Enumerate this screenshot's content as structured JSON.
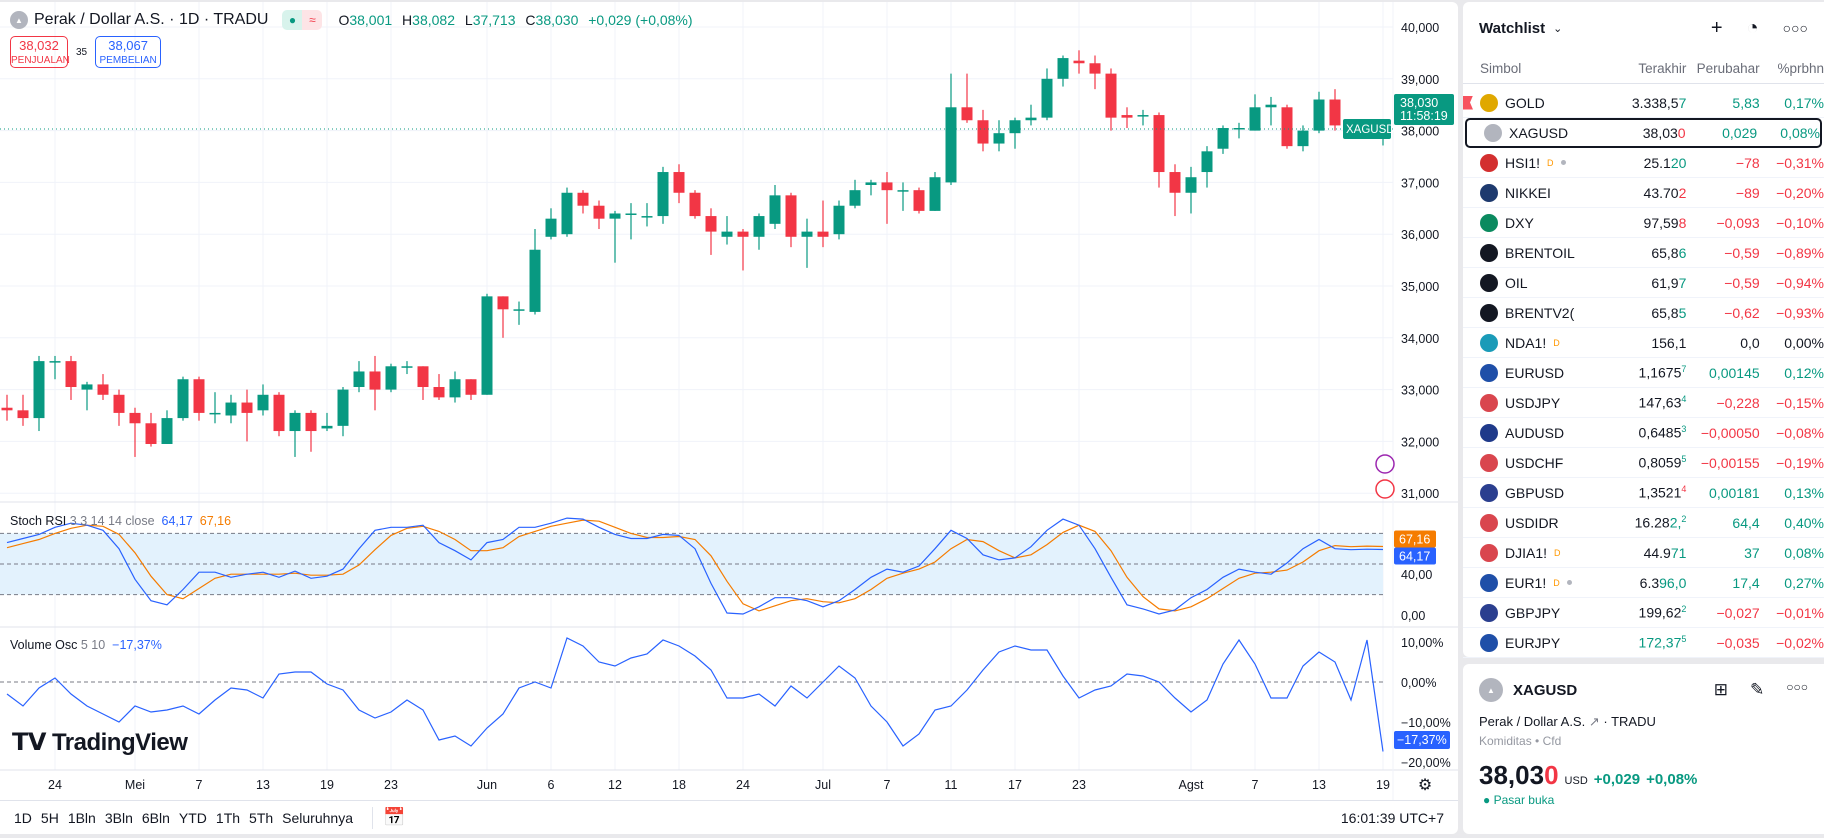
{
  "header": {
    "symbol_title": "Perak / Dollar A.S. · 1D · TRADU",
    "ohlc": {
      "o_label": "O",
      "o": "38,001",
      "h_label": "H",
      "h": "38,082",
      "l_label": "L",
      "l": "37,713",
      "c_label": "C",
      "c": "38,030",
      "change": "+0,029 (+0,08%)"
    },
    "sell_price": "38,032",
    "sell_label": "PENJUALAN",
    "spread": "35",
    "buy_price": "38,067",
    "buy_label": "PEMBELIAN"
  },
  "colors": {
    "up": "#089981",
    "down": "#f23645",
    "k_line": "#2962ff",
    "d_line": "#f57c00",
    "band": "#e3f2fd"
  },
  "price_axis": {
    "ticks": [
      "40,000",
      "39,000",
      "38,000",
      "37,000",
      "36,000",
      "35,000",
      "34,000",
      "33,000",
      "32,000",
      "31,000"
    ],
    "current_symbol": "XAGUSD",
    "current_price": "38,030",
    "countdown": "11:58:19"
  },
  "time_axis": {
    "ticks": [
      "24",
      "Mei",
      "7",
      "13",
      "19",
      "23",
      "Jun",
      "6",
      "12",
      "18",
      "24",
      "Jul",
      "7",
      "11",
      "17",
      "23",
      "Agst",
      "7",
      "13",
      "19"
    ]
  },
  "chart_data": {
    "type": "candlestick",
    "unit": "thousands",
    "ylim": [
      31,
      40
    ],
    "open": [
      32.65,
      32.6,
      32.45,
      33.55,
      33.55,
      33.0,
      33.1,
      32.9,
      32.55,
      32.35,
      31.95,
      32.45,
      33.2,
      32.55,
      32.5,
      32.75,
      32.6,
      32.9,
      32.2,
      32.55,
      32.25,
      32.3,
      33.05,
      33.35,
      33.0,
      33.45,
      33.45,
      33.05,
      32.85,
      33.2,
      32.9,
      34.8,
      34.55,
      34.5,
      35.95,
      36.0,
      36.8,
      36.55,
      36.3,
      36.4,
      36.35,
      36.35,
      37.2,
      36.8,
      36.35,
      35.95,
      36.05,
      35.95,
      36.2,
      36.75,
      35.95,
      36.05,
      36.0,
      36.55,
      36.95,
      37.0,
      36.85,
      36.85,
      36.45,
      37.0,
      38.45,
      38.2,
      37.75,
      37.95,
      38.2,
      38.25,
      39.0,
      39.35,
      39.3,
      39.1,
      38.3,
      38.3,
      38.3,
      37.2,
      36.8,
      37.2,
      37.65,
      38.05,
      38.0,
      38.45,
      38.45,
      37.7,
      38.0,
      38.6,
      38.1,
      38.0,
      38.001
    ],
    "high": [
      32.9,
      32.9,
      33.65,
      33.65,
      33.65,
      33.15,
      33.3,
      33.0,
      32.65,
      32.55,
      32.6,
      33.25,
      33.25,
      32.95,
      32.9,
      33.0,
      33.1,
      32.95,
      32.6,
      32.6,
      32.55,
      33.05,
      33.55,
      33.65,
      33.5,
      33.55,
      33.45,
      33.3,
      33.35,
      33.2,
      34.85,
      34.8,
      34.7,
      36.1,
      36.5,
      36.9,
      36.85,
      36.65,
      36.45,
      36.6,
      36.6,
      37.3,
      37.35,
      36.85,
      36.5,
      36.35,
      36.1,
      36.4,
      36.95,
      36.8,
      36.3,
      36.65,
      36.65,
      37.05,
      37.05,
      37.2,
      37.0,
      36.9,
      37.2,
      39.1,
      39.1,
      38.4,
      38.2,
      38.25,
      38.5,
      39.2,
      39.45,
      39.55,
      39.45,
      39.2,
      38.45,
      38.4,
      38.35,
      37.35,
      37.3,
      37.7,
      38.1,
      38.15,
      38.7,
      38.65,
      38.5,
      38.1,
      38.75,
      38.8,
      38.2,
      38.2,
      38.082
    ],
    "low": [
      32.4,
      32.3,
      32.2,
      33.2,
      32.8,
      32.6,
      32.8,
      32.3,
      31.7,
      31.9,
      31.95,
      32.4,
      32.4,
      32.35,
      32.35,
      32.0,
      32.5,
      32.1,
      31.7,
      31.8,
      32.2,
      32.1,
      32.95,
      32.6,
      32.95,
      33.3,
      32.8,
      32.8,
      32.75,
      32.8,
      32.9,
      34.0,
      34.25,
      34.45,
      35.9,
      35.95,
      36.4,
      36.1,
      35.45,
      35.9,
      36.15,
      36.2,
      36.6,
      36.3,
      35.6,
      35.8,
      35.3,
      35.7,
      36.1,
      35.75,
      35.35,
      35.75,
      35.9,
      36.5,
      36.75,
      36.2,
      36.45,
      36.4,
      36.45,
      36.95,
      38.15,
      37.6,
      37.6,
      37.65,
      38.1,
      38.2,
      38.85,
      39.1,
      38.8,
      38.0,
      38.05,
      38.1,
      36.9,
      36.35,
      36.4,
      36.9,
      37.55,
      37.85,
      38.0,
      38.1,
      37.65,
      37.6,
      37.95,
      38.0,
      37.85,
      37.9,
      37.713
    ],
    "close": [
      32.6,
      32.45,
      33.55,
      33.55,
      33.05,
      33.1,
      32.9,
      32.55,
      32.35,
      31.95,
      32.45,
      33.2,
      32.55,
      32.55,
      32.75,
      32.55,
      32.9,
      32.2,
      32.55,
      32.2,
      32.3,
      33.0,
      33.35,
      33.0,
      33.45,
      33.45,
      33.05,
      32.85,
      33.2,
      32.9,
      34.8,
      34.55,
      34.55,
      35.7,
      36.3,
      36.8,
      36.55,
      36.3,
      36.4,
      36.4,
      36.35,
      37.2,
      36.8,
      36.35,
      36.05,
      36.05,
      35.95,
      36.35,
      36.75,
      35.95,
      36.05,
      35.95,
      36.55,
      36.85,
      37.0,
      36.85,
      36.85,
      36.45,
      37.1,
      38.45,
      38.2,
      37.75,
      37.95,
      38.2,
      38.25,
      39.0,
      39.4,
      39.3,
      39.1,
      38.25,
      38.25,
      38.3,
      37.2,
      36.8,
      37.1,
      37.6,
      38.05,
      38.05,
      38.45,
      38.5,
      37.7,
      38.0,
      38.6,
      38.1,
      38.05,
      38.08,
      38.03
    ]
  },
  "stoch_rsi": {
    "label": "Stoch RSI",
    "params": "3 3 14 14 close",
    "k_value": "64,17",
    "d_value": "67,16",
    "ticks": [
      "40,00",
      "0,00"
    ],
    "levels": [
      80,
      50,
      20
    ],
    "k": [
      71,
      75,
      79,
      86,
      90,
      88,
      83,
      65,
      35,
      14,
      10,
      25,
      42,
      42,
      37,
      40,
      42,
      37,
      43,
      36,
      38,
      45,
      65,
      83,
      86,
      86,
      88,
      71,
      63,
      54,
      71,
      74,
      86,
      86,
      90,
      95,
      94,
      86,
      79,
      75,
      75,
      79,
      78,
      65,
      31,
      2,
      1,
      8,
      17,
      17,
      14,
      8,
      14,
      25,
      37,
      45,
      42,
      48,
      65,
      83,
      75,
      59,
      54,
      56,
      67,
      83,
      94,
      88,
      65,
      37,
      10,
      6,
      1,
      5,
      17,
      25,
      37,
      45,
      42,
      40,
      51,
      65,
      74,
      65,
      64,
      64.5,
      64.17
    ],
    "d": [
      66,
      70,
      74,
      80,
      85,
      88,
      87,
      79,
      61,
      38,
      20,
      16,
      26,
      36,
      40,
      40,
      40,
      40,
      41,
      39,
      39,
      40,
      49,
      64,
      78,
      85,
      87,
      82,
      74,
      63,
      63,
      66,
      77,
      82,
      87,
      90,
      93,
      92,
      86,
      80,
      76,
      76,
      77,
      74,
      58,
      33,
      11,
      4,
      9,
      14,
      16,
      13,
      12,
      16,
      25,
      36,
      41,
      45,
      52,
      65,
      74,
      72,
      63,
      56,
      59,
      69,
      81,
      88,
      82,
      63,
      37,
      18,
      6,
      4,
      8,
      16,
      26,
      36,
      41,
      42,
      44,
      52,
      63,
      68,
      67,
      67.5,
      67.16
    ]
  },
  "volume_osc": {
    "label": "Volume Osc",
    "params": "5 10",
    "value": "−17,37%",
    "ticks": [
      "10,00%",
      "0,00%",
      "−10,00%",
      "−20,00%"
    ],
    "values": [
      -3,
      -6,
      -1.5,
      1,
      -3,
      -6,
      -8,
      -10,
      -6,
      -7.5,
      -7,
      -6,
      -8,
      -4.5,
      -1.5,
      -2,
      -4,
      2,
      2.5,
      2.5,
      -0.5,
      -2,
      -7,
      -9,
      -7.5,
      -4.5,
      -7,
      -14.5,
      -13.5,
      -16,
      -11.5,
      -8,
      -1.5,
      0,
      -1.5,
      11,
      9,
      5,
      4,
      6,
      7,
      10.5,
      9,
      6.5,
      3,
      -4,
      -4,
      -3,
      -6,
      -1,
      -4,
      0,
      4,
      1,
      -6,
      -10,
      -16,
      -13,
      -7,
      -6,
      -2,
      3,
      7.5,
      9,
      8,
      8,
      1.5,
      -4,
      -2,
      -1,
      2,
      1.5,
      0,
      -4,
      -7.5,
      -4.5,
      4.5,
      10.5,
      4.5,
      -4,
      -4,
      4,
      7.5,
      5,
      -4.5,
      10.5,
      -17.37
    ]
  },
  "branding": {
    "logo": "TradingView"
  },
  "bottom_bar": {
    "ranges": [
      "1D",
      "5H",
      "1Bln",
      "3Bln",
      "6Bln",
      "YTD",
      "1Th",
      "5Th",
      "Seluruhnya"
    ],
    "clock": "16:01:39 UTC+7"
  },
  "watchlist": {
    "title": "Watchlist",
    "columns": [
      "Simbol",
      "Terakhir",
      "Perubahar",
      "%prbhn"
    ],
    "rows": [
      {
        "symbol": "GOLD",
        "icon": "gold-bar",
        "icon_color": "#e0a800",
        "main": "3.338,5",
        "tail": "7",
        "sup": "",
        "tail_dir": "up",
        "change": "5,83",
        "pct": "0,17%",
        "dir": "up",
        "flag": true
      },
      {
        "symbol": "XAGUSD",
        "icon": "silver-bar",
        "icon_color": "#b2b5be",
        "main": "38,03",
        "tail": "0",
        "sup": "",
        "tail_dir": "dn",
        "change": "0,029",
        "pct": "0,08%",
        "dir": "up",
        "selected": true
      },
      {
        "symbol": "HSI1!",
        "icon": "hsi",
        "icon_color": "#d32f2f",
        "main": "25.1",
        "tail": "20",
        "sup": "",
        "tail_dir": "up",
        "change": "−78",
        "pct": "−0,31%",
        "dir": "dn",
        "badge": "D",
        "dot": true
      },
      {
        "symbol": "NIKKEI",
        "icon": "nikkei-225",
        "icon_color": "#1e3a6e",
        "main": "43.70",
        "tail": "2",
        "sup": "",
        "tail_dir": "dn",
        "change": "−89",
        "pct": "−0,20%",
        "dir": "dn"
      },
      {
        "symbol": "DXY",
        "icon": "dollar",
        "icon_color": "#0b8a5f",
        "main": "97,59",
        "tail": "8",
        "sup": "",
        "tail_dir": "dn",
        "change": "−0,093",
        "pct": "−0,10%",
        "dir": "dn"
      },
      {
        "symbol": "BRENTOIL",
        "icon": "oil-drop",
        "icon_color": "#131722",
        "main": "65,8",
        "tail": "6",
        "sup": "",
        "tail_dir": "up",
        "change": "−0,59",
        "pct": "−0,89%",
        "dir": "dn"
      },
      {
        "symbol": "OIL",
        "icon": "oil-drop",
        "icon_color": "#131722",
        "main": "61,9",
        "tail": "7",
        "sup": "",
        "tail_dir": "up",
        "change": "−0,59",
        "pct": "−0,94%",
        "dir": "dn"
      },
      {
        "symbol": "BRENTV2(",
        "icon": "oil-drop",
        "icon_color": "#131722",
        "main": "65,8",
        "tail": "5",
        "sup": "",
        "tail_dir": "up",
        "change": "−0,62",
        "pct": "−0,93%",
        "dir": "dn"
      },
      {
        "symbol": "NDA1!",
        "icon": "index-100",
        "icon_color": "#1a9bb8",
        "main": "156,1",
        "tail": "",
        "sup": "",
        "tail_dir": "",
        "change": "0,0",
        "pct": "0,00%",
        "dir": "",
        "badge": "D"
      },
      {
        "symbol": "EURUSD",
        "icon": "flag-eu-us",
        "icon_color": "#1f4fa8",
        "main": "1,1675",
        "tail": "",
        "sup": "7",
        "tail_dir": "up",
        "change": "0,00145",
        "pct": "0,12%",
        "dir": "up"
      },
      {
        "symbol": "USDJPY",
        "icon": "flag-us-jp",
        "icon_color": "#d9464e",
        "main": "147,63",
        "tail": "",
        "sup": "4",
        "tail_dir": "up",
        "change": "−0,228",
        "pct": "−0,15%",
        "dir": "dn"
      },
      {
        "symbol": "AUDUSD",
        "icon": "flag-au-us",
        "icon_color": "#1f3a8a",
        "main": "0,6485",
        "tail": "",
        "sup": "3",
        "tail_dir": "up",
        "change": "−0,00050",
        "pct": "−0,08%",
        "dir": "dn"
      },
      {
        "symbol": "USDCHF",
        "icon": "flag-us-ch",
        "icon_color": "#d9464e",
        "main": "0,8059",
        "tail": "",
        "sup": "5",
        "tail_dir": "up",
        "change": "−0,00155",
        "pct": "−0,19%",
        "dir": "dn"
      },
      {
        "symbol": "GBPUSD",
        "icon": "flag-gb-us",
        "icon_color": "#2b3f8f",
        "main": "1,3521",
        "tail": "",
        "sup": "4",
        "tail_dir": "dn",
        "change": "0,00181",
        "pct": "0,13%",
        "dir": "up"
      },
      {
        "symbol": "USDIDR",
        "icon": "flag-us-id",
        "icon_color": "#d9464e",
        "main": "16.28",
        "tail": "2,",
        "sup": "2",
        "tail_dir": "up",
        "change": "64,4",
        "pct": "0,40%",
        "dir": "up"
      },
      {
        "symbol": "DJIA1!",
        "icon": "flag-us",
        "icon_color": "#d9464e",
        "main": "44.9",
        "tail": "71",
        "sup": "",
        "tail_dir": "up",
        "change": "37",
        "pct": "0,08%",
        "dir": "up",
        "badge": "D"
      },
      {
        "symbol": "EUR1!",
        "icon": "flag-eu",
        "icon_color": "#1f4fa8",
        "main": "6.3",
        "tail": "96,0",
        "sup": "",
        "tail_dir": "up",
        "change": "17,4",
        "pct": "0,27%",
        "dir": "up",
        "badge": "D",
        "dot": true
      },
      {
        "symbol": "GBPJPY",
        "icon": "flag-gb-jp",
        "icon_color": "#2b3f8f",
        "main": "199,62",
        "tail": "",
        "sup": "2",
        "tail_dir": "up",
        "change": "−0,027",
        "pct": "−0,01%",
        "dir": "dn"
      },
      {
        "symbol": "EURJPY",
        "icon": "flag-eu-jp",
        "icon_color": "#1f4fa8",
        "main": "",
        "tail": "172,37",
        "sup": "5",
        "tail_dir": "up",
        "change": "−0,035",
        "pct": "−0,02%",
        "dir": "dn"
      }
    ]
  },
  "details": {
    "symbol": "XAGUSD",
    "name": "Perak / Dollar A.S.",
    "exchange": "TRADU",
    "category": "Komiditas",
    "type": "Cfd",
    "price_main": "38,03",
    "price_tail": "0",
    "currency": "USD",
    "change": "+0,029",
    "pct": "+0,08%",
    "status": "Pasar buka"
  }
}
